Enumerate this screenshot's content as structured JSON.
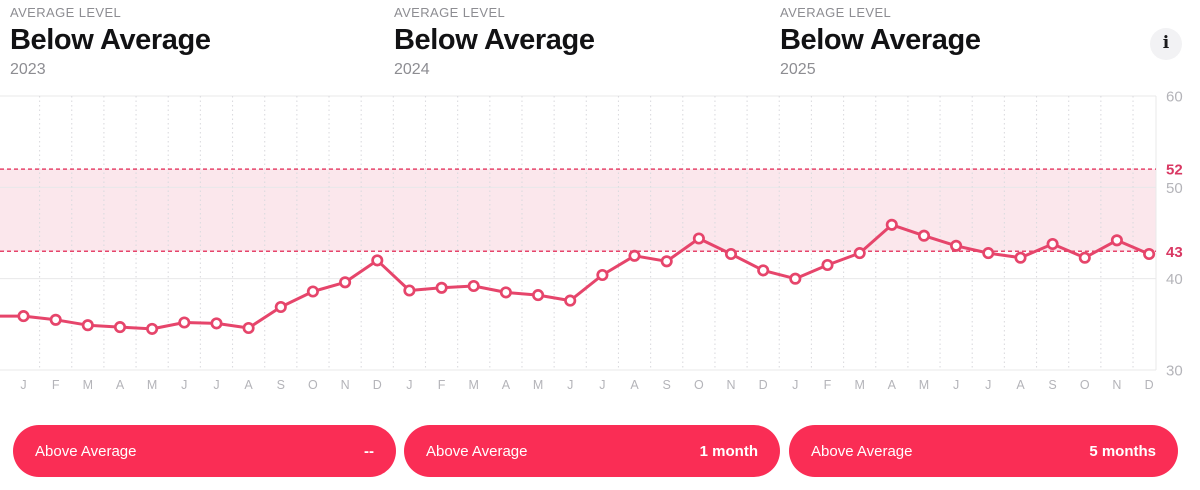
{
  "colors": {
    "pill_bg": "#fa2d55",
    "line": "#e6456b",
    "band_fill": "#fbe7ec",
    "accent_tick_label": "#d93863",
    "gray_tick_label": "#b4b4b9",
    "month_label": "#b4b4b9",
    "gridline": "#e8e8ea",
    "dotted_gridline": "#dbdbdf"
  },
  "panels": [
    {
      "eyebrow": "AVERAGE LEVEL",
      "title": "Below Average",
      "year": "2023"
    },
    {
      "eyebrow": "AVERAGE LEVEL",
      "title": "Below Average",
      "year": "2024"
    },
    {
      "eyebrow": "AVERAGE LEVEL",
      "title": "Below Average",
      "year": "2025"
    }
  ],
  "icons": {
    "info": "i"
  },
  "chart_data": {
    "type": "line",
    "years": [
      "2023",
      "2024",
      "2025"
    ],
    "month_letters": [
      "J",
      "F",
      "M",
      "A",
      "M",
      "J",
      "J",
      "A",
      "S",
      "O",
      "N",
      "D"
    ],
    "series": [
      {
        "name": "2023",
        "values": [
          35.9,
          35.5,
          34.9,
          34.7,
          34.5,
          35.2,
          35.1,
          34.6,
          36.9,
          38.6,
          39.6,
          42.0
        ]
      },
      {
        "name": "2024",
        "values": [
          38.7,
          39.0,
          39.2,
          38.5,
          38.2,
          37.6,
          40.4,
          42.5,
          41.9,
          44.4,
          42.7,
          40.9
        ]
      },
      {
        "name": "2025",
        "values": [
          40.0,
          41.5,
          42.8,
          45.9,
          44.7,
          43.6,
          42.8,
          42.3,
          43.8,
          42.3,
          44.2,
          42.7
        ]
      }
    ],
    "ylim": [
      30,
      60
    ],
    "gray_ticks": [
      60,
      50,
      40,
      30
    ],
    "accent_ticks": [
      52,
      43
    ],
    "reference_band": {
      "low": 43,
      "high": 52
    },
    "grid": true,
    "legend": "none",
    "y_axis_side": "right"
  },
  "pills": [
    {
      "label": "Above Average",
      "value": "--"
    },
    {
      "label": "Above Average",
      "value": "1 month"
    },
    {
      "label": "Above Average",
      "value": "5 months"
    }
  ]
}
